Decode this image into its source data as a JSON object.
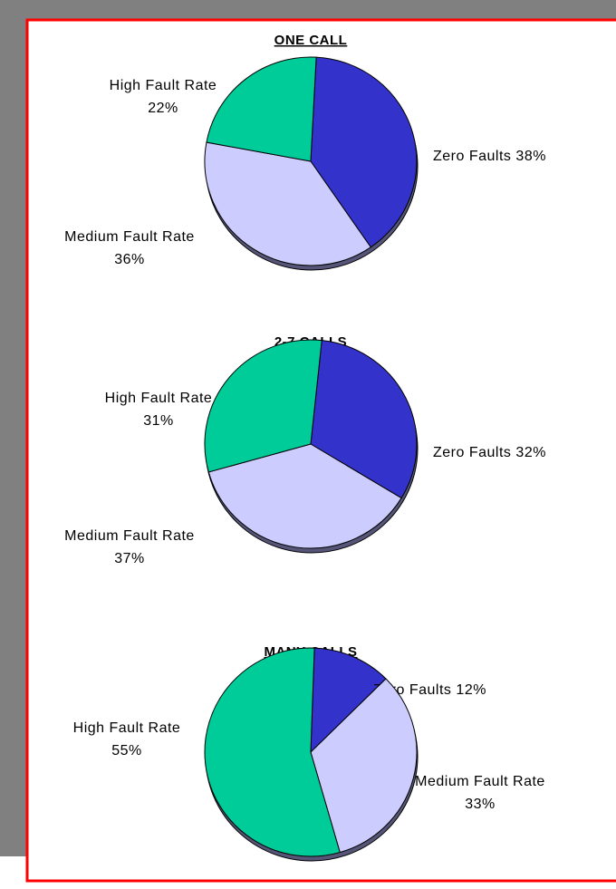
{
  "chart_data": [
    {
      "type": "pie",
      "title": "ONE CALL",
      "categories": [
        "Zero Faults",
        "Medium Fault Rate",
        "High Fault Rate"
      ],
      "values": [
        38,
        36,
        22
      ],
      "value_labels": [
        "38%",
        "36%",
        "22%"
      ],
      "colors": [
        "#3333cc",
        "#ccccff",
        "#00cc99"
      ]
    },
    {
      "type": "pie",
      "title": "2-7 CALLS",
      "categories": [
        "Zero Faults",
        "Medium Fault Rate",
        "High Fault Rate"
      ],
      "values": [
        32,
        37,
        31
      ],
      "value_labels": [
        "32%",
        "37%",
        "31%"
      ],
      "colors": [
        "#3333cc",
        "#ccccff",
        "#00cc99"
      ]
    },
    {
      "type": "pie",
      "title": "MANY CALLS",
      "categories": [
        "Zero Faults",
        "Medium Fault Rate",
        "High Fault Rate"
      ],
      "values": [
        12,
        33,
        55
      ],
      "value_labels": [
        "12%",
        "33%",
        "55%"
      ],
      "colors": [
        "#3333cc",
        "#ccccff",
        "#00cc99"
      ]
    }
  ]
}
